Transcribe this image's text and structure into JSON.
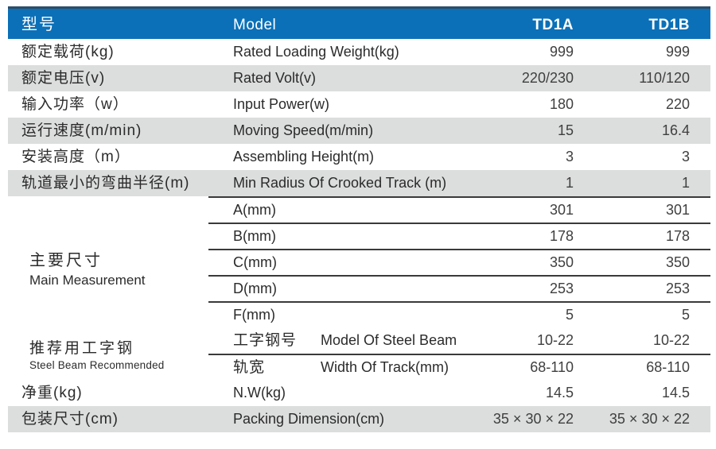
{
  "colors": {
    "header_bg": "#0b70b8",
    "header_top_line": "#2e4d68",
    "row_shade": "#dcdddd",
    "divider_line": "#3a3a3a",
    "header_text": "#ffffff",
    "body_text": "#2b2b2b"
  },
  "header": {
    "zh": "型号",
    "en": "Model",
    "col_a": "TD1A",
    "col_b": "TD1B"
  },
  "rows": [
    {
      "zh": "额定载荷(kg)",
      "en": "Rated Loading Weight(kg)",
      "a": "999",
      "b": "999",
      "shaded": false
    },
    {
      "zh": "额定电压(v)",
      "en": "Rated Volt(v)",
      "a": "220/230",
      "b": "110/120",
      "shaded": true
    },
    {
      "zh": "输入功率（w）",
      "en": "Input Power(w)",
      "a": "180",
      "b": "220",
      "shaded": false
    },
    {
      "zh": "运行速度(m/min)",
      "en": "Moving Speed(m/min)",
      "a": "15",
      "b": "16.4",
      "shaded": true
    },
    {
      "zh": "安装高度（m）",
      "en": "Assembling Height(m)",
      "a": "3",
      "b": "3",
      "shaded": false
    },
    {
      "zh": "轨道最小的弯曲半径(m)",
      "en": "Min Radius Of Crooked Track (m)",
      "a": "1",
      "b": "1",
      "shaded": true
    }
  ],
  "main_measurement": {
    "zh": "主要尺寸",
    "en": "Main Measurement",
    "rows": [
      {
        "label": "A(mm)",
        "a": "301",
        "b": "301"
      },
      {
        "label": "B(mm)",
        "a": "178",
        "b": "178"
      },
      {
        "label": "C(mm)",
        "a": "350",
        "b": "350"
      },
      {
        "label": "D(mm)",
        "a": "253",
        "b": "253"
      },
      {
        "label": "F(mm)",
        "a": "5",
        "b": "5"
      }
    ]
  },
  "steel_beam": {
    "zh": "推荐用工字钢",
    "en": "Steel Beam Recommended",
    "rows": [
      {
        "zh": "工字钢号",
        "en": "Model Of Steel Beam",
        "a": "10-22",
        "b": "10-22"
      },
      {
        "zh": "轨宽",
        "en": "Width Of Track(mm)",
        "a": "68-110",
        "b": "68-110"
      }
    ]
  },
  "bottom_rows": [
    {
      "zh": "净重(kg)",
      "en": "N.W(kg)",
      "a": "14.5",
      "b": "14.5",
      "shaded": false
    },
    {
      "zh": "包装尺寸(cm)",
      "en": "Packing Dimension(cm)",
      "a": "35 × 30 × 22",
      "b": "35 × 30 × 22",
      "shaded": true
    }
  ]
}
